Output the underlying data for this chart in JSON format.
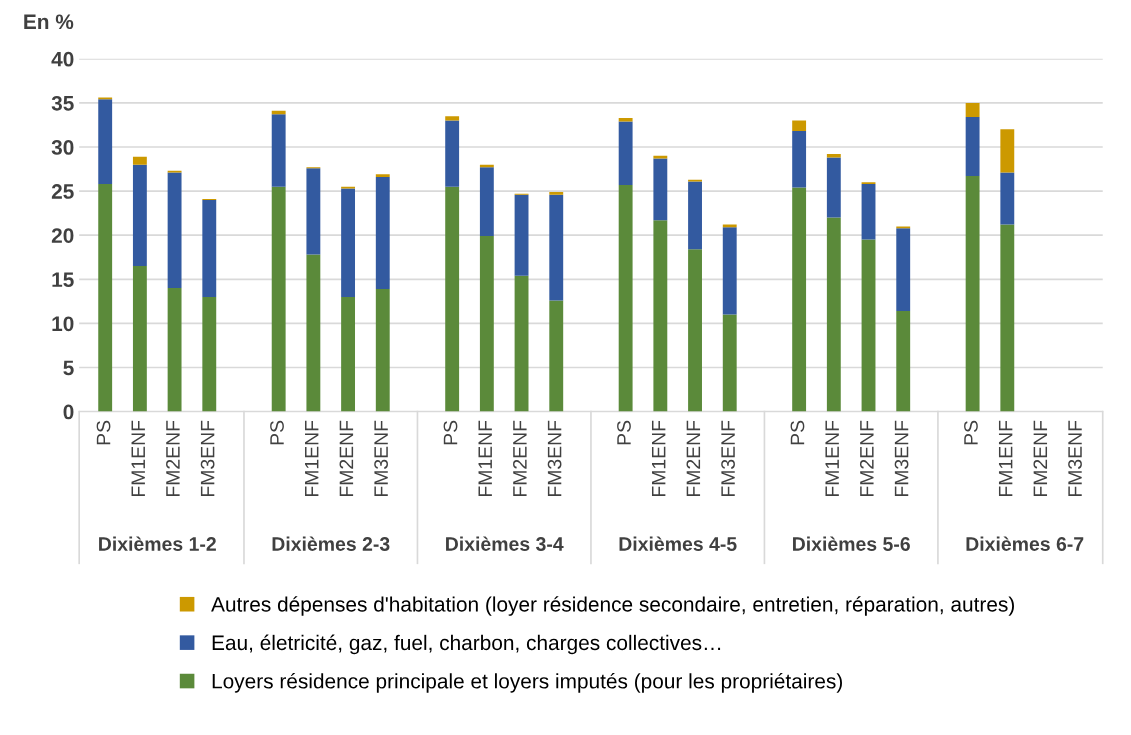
{
  "chart_data": {
    "type": "bar",
    "stacked": true,
    "ylabel": "En %",
    "categories": [
      "PS",
      "FM1ENF",
      "FM2ENF",
      "FM3ENF",
      "PS",
      "FM1ENF",
      "FM2ENF",
      "FM3ENF",
      "PS",
      "FM1ENF",
      "FM2ENF",
      "FM3ENF",
      "PS",
      "FM1ENF",
      "FM2ENF",
      "FM3ENF",
      "PS",
      "FM1ENF",
      "FM2ENF",
      "FM3ENF",
      "PS",
      "FM1ENF",
      "FM2ENF",
      "FM3ENF"
    ],
    "annotations": [
      "Dixièmes 1-2",
      "Dixièmes 2-3",
      "Dixièmes 3-4",
      "Dixièmes 4-5",
      "Dixièmes 5-6",
      "Dixièmes 6-7"
    ],
    "series": [
      {
        "name": "Loyers résidence principale et loyers imputés (pour les propriétaires)",
        "color": "#5b8a3a",
        "values": [
          25.8,
          16.5,
          14.0,
          13.0,
          25.5,
          17.8,
          13.0,
          13.9,
          25.5,
          19.9,
          15.4,
          12.6,
          25.7,
          21.7,
          18.4,
          11.0,
          25.4,
          22.0,
          19.5,
          11.4,
          26.7,
          21.2,
          null,
          null
        ]
      },
      {
        "name": "Eau, életricité, gaz, fuel, charbon, charges collectives…",
        "color": "#335aa0",
        "values": [
          9.6,
          11.5,
          13.1,
          11.0,
          8.2,
          9.8,
          12.3,
          12.7,
          7.5,
          7.8,
          9.2,
          12.0,
          7.2,
          7.0,
          7.7,
          9.9,
          6.4,
          6.8,
          6.3,
          9.4,
          6.7,
          5.9,
          null,
          null
        ]
      },
      {
        "name": "Autres dépenses d'habitation (loyer résidence secondaire, entretien, réparation, autres)",
        "color": "#cc9900",
        "values": [
          0.2,
          0.9,
          0.2,
          0.1,
          0.4,
          0.1,
          0.2,
          0.3,
          0.5,
          0.3,
          0.1,
          0.3,
          0.4,
          0.3,
          0.2,
          0.3,
          1.2,
          0.4,
          0.2,
          0.2,
          1.6,
          4.9,
          null,
          null
        ]
      }
    ],
    "ylim": [
      0,
      40
    ],
    "yticks": [
      0,
      5,
      10,
      15,
      20,
      25,
      30,
      35,
      40
    ],
    "grid": "y",
    "legend": "bottom"
  }
}
